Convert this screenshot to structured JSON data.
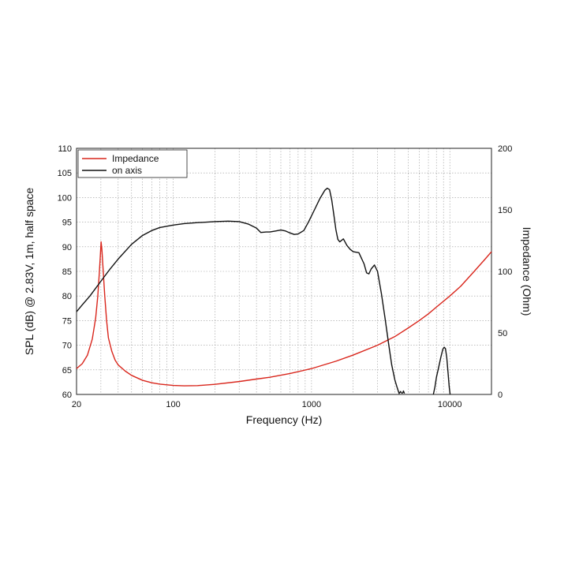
{
  "chart_data": {
    "type": "line",
    "xlabel": "Frequency (Hz)",
    "ylabel_left": "SPL (dB) @ 2.83V, 1m, half space",
    "ylabel_right": "Impedance (Ohm)",
    "x_scale": "log",
    "xlim": [
      20,
      20000
    ],
    "ylim_left": [
      60,
      110
    ],
    "ylim_right": [
      0,
      200
    ],
    "x_tick_labels": [
      "20",
      "100",
      "1000",
      "10000"
    ],
    "x_tick_values": [
      20,
      100,
      1000,
      10000
    ],
    "y_left_tick_values": [
      60,
      65,
      70,
      75,
      80,
      85,
      90,
      95,
      100,
      105,
      110
    ],
    "y_left_tick_labels": [
      "60",
      "65",
      "70",
      "75",
      "80",
      "85",
      "90",
      "95",
      "100",
      "105",
      "110"
    ],
    "y_right_tick_values": [
      0,
      50,
      100,
      150,
      200
    ],
    "y_right_tick_labels": [
      "0",
      "50",
      "100",
      "150",
      "200"
    ],
    "grid": true,
    "legend_position": "top-left",
    "series": [
      {
        "name": "Impedance",
        "color": "#d9261c",
        "axis": "right",
        "points": [
          [
            20,
            21
          ],
          [
            22,
            25
          ],
          [
            24,
            32
          ],
          [
            26,
            45
          ],
          [
            27.5,
            62
          ],
          [
            28.5,
            80
          ],
          [
            29.2,
            98
          ],
          [
            29.7,
            112
          ],
          [
            30.1,
            124
          ],
          [
            30.5,
            118
          ],
          [
            31,
            105
          ],
          [
            32,
            80
          ],
          [
            33,
            60
          ],
          [
            34,
            46
          ],
          [
            36,
            35
          ],
          [
            38,
            28
          ],
          [
            40,
            24
          ],
          [
            45,
            19
          ],
          [
            50,
            15.5
          ],
          [
            60,
            11.5
          ],
          [
            70,
            9.5
          ],
          [
            80,
            8.4
          ],
          [
            100,
            7.3
          ],
          [
            120,
            7
          ],
          [
            150,
            7.2
          ],
          [
            200,
            8.2
          ],
          [
            300,
            10.5
          ],
          [
            400,
            12.5
          ],
          [
            500,
            14
          ],
          [
            700,
            17
          ],
          [
            1000,
            21
          ],
          [
            1500,
            27
          ],
          [
            2000,
            32
          ],
          [
            3000,
            40
          ],
          [
            4000,
            47
          ],
          [
            5000,
            54
          ],
          [
            6000,
            60
          ],
          [
            7000,
            65.5
          ],
          [
            8000,
            71
          ],
          [
            10000,
            80
          ],
          [
            12000,
            88
          ],
          [
            15000,
            100
          ],
          [
            18000,
            110
          ],
          [
            20000,
            116
          ]
        ]
      },
      {
        "name": "on axis",
        "color": "#111111",
        "axis": "left",
        "points": [
          [
            20,
            76.8
          ],
          [
            22,
            78.2
          ],
          [
            25,
            80
          ],
          [
            30,
            83
          ],
          [
            35,
            85.5
          ],
          [
            40,
            87.5
          ],
          [
            50,
            90.5
          ],
          [
            60,
            92.3
          ],
          [
            70,
            93.3
          ],
          [
            80,
            93.9
          ],
          [
            100,
            94.4
          ],
          [
            120,
            94.7
          ],
          [
            150,
            94.9
          ],
          [
            200,
            95.1
          ],
          [
            250,
            95.2
          ],
          [
            300,
            95.1
          ],
          [
            350,
            94.6
          ],
          [
            400,
            93.8
          ],
          [
            430,
            92.9
          ],
          [
            470,
            93
          ],
          [
            500,
            93
          ],
          [
            550,
            93.2
          ],
          [
            600,
            93.4
          ],
          [
            650,
            93.2
          ],
          [
            700,
            92.8
          ],
          [
            750,
            92.5
          ],
          [
            800,
            92.6
          ],
          [
            880,
            93.3
          ],
          [
            950,
            95
          ],
          [
            1050,
            97.5
          ],
          [
            1150,
            99.8
          ],
          [
            1250,
            101.5
          ],
          [
            1300,
            101.9
          ],
          [
            1350,
            101.6
          ],
          [
            1400,
            99.5
          ],
          [
            1450,
            96.5
          ],
          [
            1500,
            93.5
          ],
          [
            1550,
            91.5
          ],
          [
            1600,
            91
          ],
          [
            1700,
            91.6
          ],
          [
            1800,
            90.3
          ],
          [
            1900,
            89.5
          ],
          [
            2000,
            89
          ],
          [
            2200,
            88.8
          ],
          [
            2400,
            86.5
          ],
          [
            2500,
            84.7
          ],
          [
            2600,
            84.5
          ],
          [
            2700,
            85.5
          ],
          [
            2850,
            86.3
          ],
          [
            3000,
            85
          ],
          [
            3200,
            80.5
          ],
          [
            3400,
            75.5
          ],
          [
            3600,
            70.5
          ],
          [
            3800,
            66
          ],
          [
            4000,
            63
          ],
          [
            4150,
            61.5
          ],
          [
            4250,
            60.6
          ],
          [
            4300,
            60.2
          ],
          [
            4400,
            60.6
          ],
          [
            4500,
            60.2
          ]
        ],
        "points_2": [
          [
            4550,
            60.2
          ],
          [
            4620,
            60.7
          ],
          [
            4700,
            60.2
          ]
        ],
        "points_3": [
          [
            7600,
            60
          ],
          [
            7800,
            61.5
          ],
          [
            8000,
            63.5
          ],
          [
            8300,
            65.5
          ],
          [
            8600,
            67.5
          ],
          [
            8900,
            69.2
          ],
          [
            9100,
            69.6
          ],
          [
            9300,
            69.3
          ],
          [
            9500,
            67.5
          ],
          [
            9700,
            64.5
          ],
          [
            9900,
            61.5
          ],
          [
            10050,
            60
          ]
        ]
      }
    ]
  }
}
